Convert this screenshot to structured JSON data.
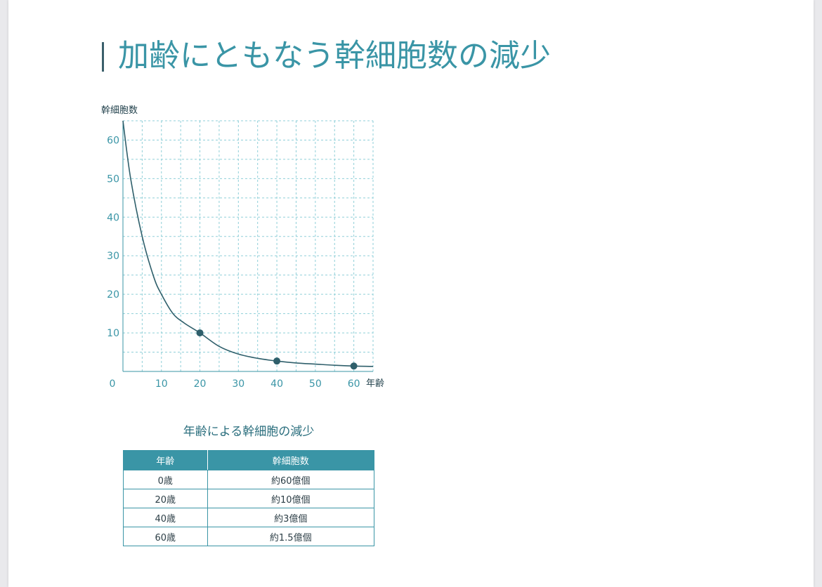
{
  "page": {
    "title": "加齢にともなう幹細胞数の減少"
  },
  "chart_data": {
    "type": "line",
    "ylabel": "幹細胞数",
    "xlabel": "年齢",
    "xlim": [
      0,
      65
    ],
    "ylim": [
      0,
      65
    ],
    "x_ticks": [
      0,
      10,
      20,
      30,
      40,
      50,
      60
    ],
    "y_ticks": [
      10,
      20,
      30,
      40,
      50,
      60
    ],
    "grid": true,
    "series": [
      {
        "x": [
          0,
          2,
          5,
          8,
          10,
          13,
          16,
          20,
          25,
          30,
          35,
          40,
          45,
          50,
          55,
          60,
          65
        ],
        "y": [
          65,
          50,
          35,
          24.5,
          20,
          15,
          12.5,
          10,
          6.5,
          4.5,
          3.4,
          2.7,
          2.2,
          1.9,
          1.6,
          1.4,
          1.3
        ]
      }
    ],
    "points": [
      {
        "x": 20,
        "y": 10
      },
      {
        "x": 40,
        "y": 2.7
      },
      {
        "x": 60,
        "y": 1.4
      }
    ],
    "colors": {
      "line": "#2f5f6b",
      "grid": "#8fcfd8",
      "tick": "#3a95a6",
      "label": "#1f3f4a"
    }
  },
  "caption": "年齢による幹細胞の減少",
  "table": {
    "headers": [
      "年齢",
      "幹細胞数"
    ],
    "rows": [
      [
        "0歳",
        "約60億個"
      ],
      [
        "20歳",
        "約10億個"
      ],
      [
        "40歳",
        "約3億個"
      ],
      [
        "60歳",
        "約1.5億個"
      ]
    ],
    "header_color": "#3a95a6"
  }
}
